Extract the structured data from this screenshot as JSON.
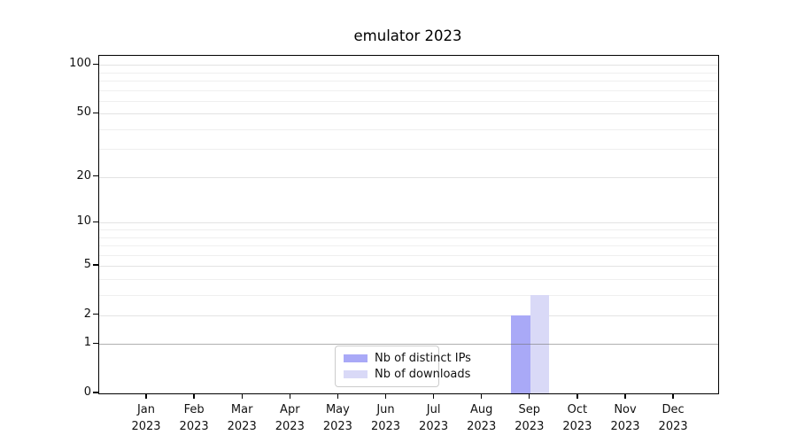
{
  "chart_data": {
    "type": "bar",
    "title": "emulator 2023",
    "categories": [
      "Jan 2023",
      "Feb 2023",
      "Mar 2023",
      "Apr 2023",
      "May 2023",
      "Jun 2023",
      "Jul 2023",
      "Aug 2023",
      "Sep 2023",
      "Oct 2023",
      "Nov 2023",
      "Dec 2023"
    ],
    "series": [
      {
        "name": "Nb of distinct IPs",
        "color": "#a9a9f7",
        "values": [
          0,
          0,
          0,
          0,
          0,
          0,
          0,
          0,
          2,
          0,
          0,
          0
        ]
      },
      {
        "name": "Nb of downloads",
        "color": "#d9d9f7",
        "values": [
          0,
          0,
          0,
          0,
          0,
          0,
          0,
          0,
          3,
          0,
          0,
          0
        ]
      }
    ],
    "xlabel": "",
    "ylabel": "",
    "yscale": "log1p",
    "ylim": [
      0,
      114
    ],
    "yticks_major": [
      0,
      1,
      2,
      5,
      10,
      20,
      50,
      100
    ],
    "yticks_minor": [
      3,
      4,
      6,
      7,
      8,
      9,
      30,
      40,
      60,
      70,
      80,
      90
    ],
    "grid": "horizontal major+minor, y=1 line drawn over bars",
    "legend": {
      "position": "inside lower-center",
      "entries": [
        "Nb of distinct IPs",
        "Nb of downloads"
      ]
    }
  }
}
